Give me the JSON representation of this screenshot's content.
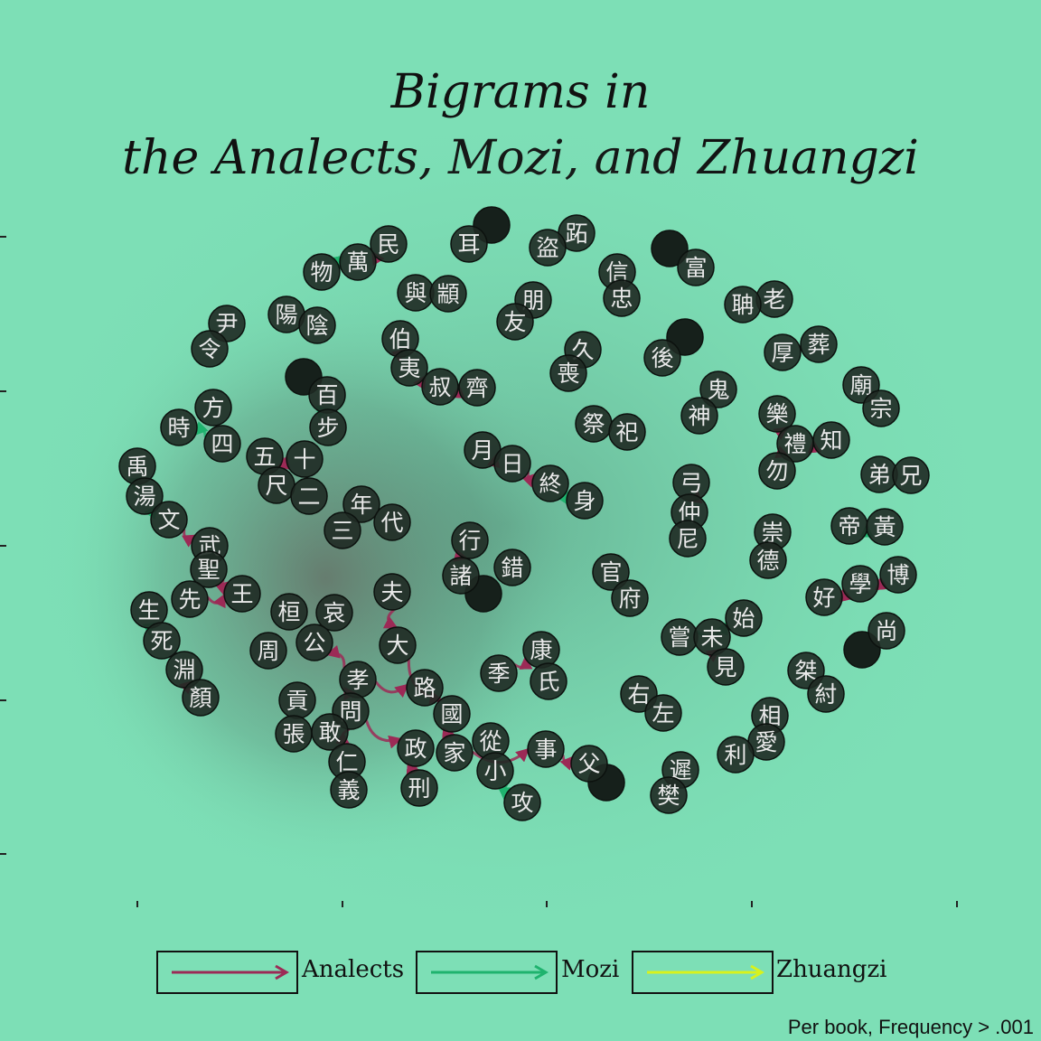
{
  "title_line1": "Bigrams in",
  "title_line2": "the Analects, Mozi, and Zhuangzi",
  "caption": "Per book, Frequency > .001",
  "colors": {
    "background": "#7ddfb6",
    "analects": "#9c2a56",
    "mozi": "#1fb36e",
    "zhuangzi": "#d8f21c",
    "node_fill": "#1f2a24",
    "node_text": "#e9e9e9"
  },
  "legend": [
    {
      "label": "Analects",
      "color": "#9c2a56"
    },
    {
      "label": "Mozi",
      "color": "#1fb36e"
    },
    {
      "label": "Zhuangzi",
      "color": "#d8f21c"
    }
  ],
  "nodes": [
    "民",
    "萬",
    "物",
    "耳",
    "跖",
    "盜",
    "富",
    "信",
    "忠",
    "老",
    "聃",
    "與",
    "顓",
    "朋",
    "友",
    "尹",
    "令",
    "陽",
    "陰",
    "伯",
    "夷",
    "叔",
    "齊",
    "久",
    "喪",
    "後",
    "厚",
    "葬",
    "廟",
    "宗",
    "百",
    "步",
    "方",
    "時",
    "四",
    "五",
    "十",
    "尺",
    "二",
    "年",
    "三",
    "代",
    "月",
    "日",
    "終",
    "身",
    "祭",
    "祀",
    "鬼",
    "神",
    "樂",
    "禮",
    "知",
    "勿",
    "禹",
    "湯",
    "文",
    "武",
    "聖",
    "先",
    "王",
    "生",
    "死",
    "淵",
    "顏",
    "行",
    "諸",
    "錯",
    "弓",
    "仲",
    "尼",
    "弟",
    "兄",
    "崇",
    "德",
    "帝",
    "黃",
    "好",
    "學",
    "博",
    "尚",
    "官",
    "府",
    "始",
    "嘗",
    "未",
    "見",
    "夫",
    "桓",
    "哀",
    "公",
    "周",
    "大",
    "康",
    "季",
    "氏",
    "孝",
    "問",
    "路",
    "國",
    "右",
    "左",
    "桀",
    "紂",
    "貢",
    "張",
    "敢",
    "仁",
    "義",
    "政",
    "家",
    "從",
    "小",
    "事",
    "父",
    "攻",
    "刑",
    "相",
    "愛",
    "利",
    "遲",
    "樊"
  ],
  "edges": [
    {
      "from": "萬",
      "to": "民",
      "book": "Analects"
    },
    {
      "from": "萬",
      "to": "物",
      "book": "Mozi"
    },
    {
      "from": "伯",
      "to": "夷",
      "book": "Analects"
    },
    {
      "from": "叔",
      "to": "齊",
      "book": "Analects"
    },
    {
      "from": "夷",
      "to": "叔",
      "book": "Analects"
    },
    {
      "from": "百",
      "to": "步",
      "book": "Mozi"
    },
    {
      "from": "五",
      "to": "十",
      "book": "Analects"
    },
    {
      "from": "四",
      "to": "時",
      "book": "Mozi"
    },
    {
      "from": "月",
      "to": "日",
      "book": "Analects"
    },
    {
      "from": "日",
      "to": "終",
      "book": "Analects"
    },
    {
      "from": "終",
      "to": "身",
      "book": "Mozi"
    },
    {
      "from": "樂",
      "to": "禮",
      "book": "Analects"
    },
    {
      "from": "禮",
      "to": "知",
      "book": "Analects"
    },
    {
      "from": "禮",
      "to": "勿",
      "book": "Analects"
    },
    {
      "from": "禹",
      "to": "湯",
      "book": "Mozi"
    },
    {
      "from": "湯",
      "to": "文",
      "book": "Mozi"
    },
    {
      "from": "文",
      "to": "武",
      "book": "Analects"
    },
    {
      "from": "聖",
      "to": "王",
      "book": "Analects"
    },
    {
      "from": "先",
      "to": "王",
      "book": "Analects"
    },
    {
      "from": "生",
      "to": "死",
      "book": "Mozi"
    },
    {
      "from": "淵",
      "to": "顏",
      "book": "Analects"
    },
    {
      "from": "行",
      "to": "諸",
      "book": "Analects"
    },
    {
      "from": "仲",
      "to": "弓",
      "book": "Analects"
    },
    {
      "from": "帝",
      "to": "黃",
      "book": "Mozi"
    },
    {
      "from": "好",
      "to": "學",
      "book": "Analects"
    },
    {
      "from": "學",
      "to": "博",
      "book": "Analects"
    },
    {
      "from": "嘗",
      "to": "始",
      "book": "Mozi"
    },
    {
      "from": "未",
      "to": "見",
      "book": "Analects"
    },
    {
      "from": "夫",
      "to": "大",
      "book": "Analects"
    },
    {
      "from": "大",
      "to": "國",
      "book": "Analects"
    },
    {
      "from": "季",
      "to": "康",
      "book": "Analects"
    },
    {
      "from": "孝",
      "to": "問",
      "book": "Analects"
    },
    {
      "from": "孝",
      "to": "公",
      "book": "Analects"
    },
    {
      "from": "孝",
      "to": "路",
      "book": "Analects"
    },
    {
      "from": "問",
      "to": "仁",
      "book": "Analects"
    },
    {
      "from": "問",
      "to": "政",
      "book": "Analects"
    },
    {
      "from": "國",
      "to": "家",
      "book": "Analects"
    },
    {
      "from": "家",
      "to": "事",
      "book": "Analects"
    },
    {
      "from": "小",
      "to": "攻",
      "book": "Mozi"
    },
    {
      "from": "事",
      "to": "父",
      "book": "Analects"
    },
    {
      "from": "政",
      "to": "刑",
      "book": "Analects"
    }
  ]
}
